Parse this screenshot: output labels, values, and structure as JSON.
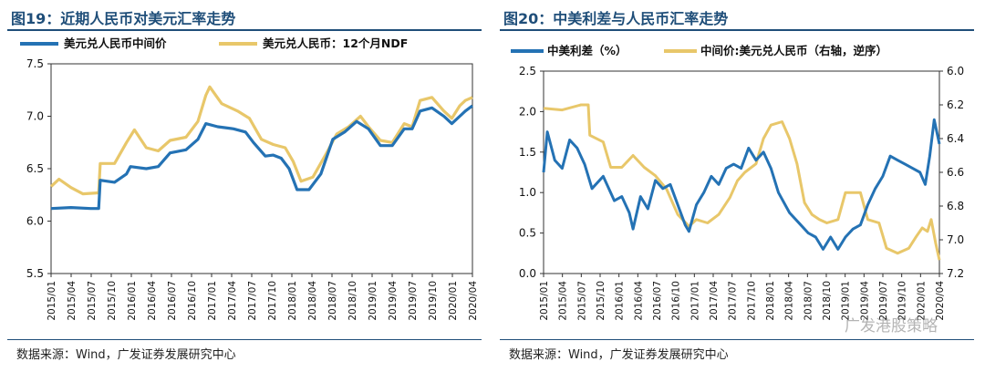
{
  "left": {
    "title": "图19：近期人民币对美元汇率走势",
    "source": "数据来源：Wind，广发证券发展研究中心",
    "chart_data": {
      "type": "line",
      "title": "近期人民币对美元汇率走势",
      "ylim": [
        5.5,
        7.5
      ],
      "yticks": [
        "7.5",
        "7.0",
        "6.5",
        "6.0",
        "5.5"
      ],
      "x_start": 2015.0,
      "x_end": 2020.31,
      "xticks": [
        "2015/01",
        "2015/04",
        "2015/07",
        "2015/10",
        "2016/01",
        "2016/04",
        "2016/07",
        "2016/10",
        "2017/01",
        "2017/04",
        "2017/07",
        "2017/10",
        "2018/01",
        "2018/04",
        "2018/07",
        "2018/10",
        "2019/01",
        "2019/04",
        "2019/07",
        "2019/10",
        "2020/01",
        "2020/04"
      ],
      "series": [
        {
          "name": "美元兑人民币中间价",
          "color": "#2472b4",
          "points": [
            [
              2015.0,
              6.12
            ],
            [
              2015.25,
              6.13
            ],
            [
              2015.5,
              6.12
            ],
            [
              2015.6,
              6.12
            ],
            [
              2015.62,
              6.39
            ],
            [
              2015.8,
              6.37
            ],
            [
              2015.95,
              6.45
            ],
            [
              2016.0,
              6.52
            ],
            [
              2016.2,
              6.5
            ],
            [
              2016.35,
              6.52
            ],
            [
              2016.5,
              6.65
            ],
            [
              2016.7,
              6.68
            ],
            [
              2016.85,
              6.78
            ],
            [
              2016.95,
              6.93
            ],
            [
              2017.1,
              6.9
            ],
            [
              2017.3,
              6.88
            ],
            [
              2017.45,
              6.85
            ],
            [
              2017.55,
              6.75
            ],
            [
              2017.7,
              6.62
            ],
            [
              2017.8,
              6.63
            ],
            [
              2017.9,
              6.6
            ],
            [
              2018.0,
              6.5
            ],
            [
              2018.1,
              6.3
            ],
            [
              2018.25,
              6.3
            ],
            [
              2018.4,
              6.45
            ],
            [
              2018.55,
              6.78
            ],
            [
              2018.7,
              6.85
            ],
            [
              2018.85,
              6.95
            ],
            [
              2019.0,
              6.88
            ],
            [
              2019.15,
              6.72
            ],
            [
              2019.3,
              6.72
            ],
            [
              2019.45,
              6.88
            ],
            [
              2019.55,
              6.88
            ],
            [
              2019.65,
              7.05
            ],
            [
              2019.8,
              7.08
            ],
            [
              2019.95,
              7.0
            ],
            [
              2020.05,
              6.93
            ],
            [
              2020.15,
              7.0
            ],
            [
              2020.22,
              7.05
            ],
            [
              2020.31,
              7.1
            ]
          ]
        },
        {
          "name": "美元兑人民币：12个月NDF",
          "color": "#e8c76a",
          "points": [
            [
              2015.0,
              6.33
            ],
            [
              2015.1,
              6.4
            ],
            [
              2015.25,
              6.32
            ],
            [
              2015.4,
              6.26
            ],
            [
              2015.6,
              6.27
            ],
            [
              2015.62,
              6.55
            ],
            [
              2015.8,
              6.55
            ],
            [
              2015.95,
              6.75
            ],
            [
              2016.05,
              6.87
            ],
            [
              2016.2,
              6.7
            ],
            [
              2016.35,
              6.67
            ],
            [
              2016.5,
              6.77
            ],
            [
              2016.7,
              6.8
            ],
            [
              2016.85,
              6.95
            ],
            [
              2016.95,
              7.2
            ],
            [
              2017.0,
              7.28
            ],
            [
              2017.15,
              7.12
            ],
            [
              2017.35,
              7.05
            ],
            [
              2017.5,
              6.98
            ],
            [
              2017.65,
              6.78
            ],
            [
              2017.8,
              6.73
            ],
            [
              2017.95,
              6.7
            ],
            [
              2018.05,
              6.57
            ],
            [
              2018.15,
              6.38
            ],
            [
              2018.3,
              6.42
            ],
            [
              2018.45,
              6.62
            ],
            [
              2018.6,
              6.83
            ],
            [
              2018.75,
              6.9
            ],
            [
              2018.9,
              7.0
            ],
            [
              2019.0,
              6.9
            ],
            [
              2019.15,
              6.77
            ],
            [
              2019.3,
              6.75
            ],
            [
              2019.45,
              6.93
            ],
            [
              2019.55,
              6.9
            ],
            [
              2019.65,
              7.15
            ],
            [
              2019.8,
              7.18
            ],
            [
              2019.95,
              7.05
            ],
            [
              2020.05,
              6.98
            ],
            [
              2020.15,
              7.1
            ],
            [
              2020.22,
              7.15
            ],
            [
              2020.31,
              7.18
            ]
          ]
        }
      ]
    }
  },
  "right": {
    "title": "图20：中美利差与人民币汇率走势",
    "source": "数据来源：Wind，广发证券发展研究中心",
    "watermark": "广发港股策略",
    "chart_data": {
      "type": "line",
      "title": "中美利差与人民币汇率走势",
      "ylim_left": [
        0,
        2.5
      ],
      "yticks_left": [
        "2.5",
        "2.0",
        "1.5",
        "1.0",
        "0.5",
        "0.0"
      ],
      "ylim_right_reversed": [
        6.0,
        7.2
      ],
      "yticks_right": [
        "6.0",
        "6.2",
        "6.4",
        "6.6",
        "6.8",
        "7.0",
        "7.2"
      ],
      "x_start": 2015.0,
      "x_end": 2020.31,
      "xticks": [
        "2015/01",
        "2015/04",
        "2015/07",
        "2015/10",
        "2016/01",
        "2016/04",
        "2016/07",
        "2016/10",
        "2017/01",
        "2017/04",
        "2017/07",
        "2017/10",
        "2018/01",
        "2018/04",
        "2018/07",
        "2018/10",
        "2019/01",
        "2019/04",
        "2019/07",
        "2019/10",
        "2020/01",
        "2020/04"
      ],
      "series": [
        {
          "name": "中美利差（%）",
          "axis": "left",
          "color": "#2472b4",
          "points": [
            [
              2015.0,
              1.25
            ],
            [
              2015.05,
              1.75
            ],
            [
              2015.15,
              1.4
            ],
            [
              2015.25,
              1.3
            ],
            [
              2015.35,
              1.65
            ],
            [
              2015.45,
              1.55
            ],
            [
              2015.55,
              1.35
            ],
            [
              2015.65,
              1.05
            ],
            [
              2015.8,
              1.2
            ],
            [
              2015.95,
              0.9
            ],
            [
              2016.05,
              0.95
            ],
            [
              2016.15,
              0.75
            ],
            [
              2016.2,
              0.55
            ],
            [
              2016.3,
              0.95
            ],
            [
              2016.4,
              0.8
            ],
            [
              2016.5,
              1.15
            ],
            [
              2016.6,
              1.05
            ],
            [
              2016.7,
              1.1
            ],
            [
              2016.8,
              0.85
            ],
            [
              2016.9,
              0.6
            ],
            [
              2016.95,
              0.52
            ],
            [
              2017.05,
              0.85
            ],
            [
              2017.15,
              1.0
            ],
            [
              2017.25,
              1.2
            ],
            [
              2017.35,
              1.1
            ],
            [
              2017.45,
              1.3
            ],
            [
              2017.55,
              1.35
            ],
            [
              2017.65,
              1.3
            ],
            [
              2017.75,
              1.55
            ],
            [
              2017.85,
              1.4
            ],
            [
              2017.95,
              1.5
            ],
            [
              2018.05,
              1.3
            ],
            [
              2018.15,
              1.0
            ],
            [
              2018.3,
              0.75
            ],
            [
              2018.45,
              0.6
            ],
            [
              2018.55,
              0.5
            ],
            [
              2018.65,
              0.45
            ],
            [
              2018.75,
              0.3
            ],
            [
              2018.85,
              0.45
            ],
            [
              2018.95,
              0.3
            ],
            [
              2019.05,
              0.45
            ],
            [
              2019.15,
              0.55
            ],
            [
              2019.25,
              0.6
            ],
            [
              2019.35,
              0.85
            ],
            [
              2019.45,
              1.05
            ],
            [
              2019.55,
              1.2
            ],
            [
              2019.65,
              1.45
            ],
            [
              2019.75,
              1.4
            ],
            [
              2019.85,
              1.35
            ],
            [
              2019.95,
              1.3
            ],
            [
              2020.05,
              1.25
            ],
            [
              2020.12,
              1.1
            ],
            [
              2020.18,
              1.45
            ],
            [
              2020.24,
              1.9
            ],
            [
              2020.31,
              1.6
            ]
          ]
        },
        {
          "name": "中间价:美元兑人民币（右轴，逆序）",
          "axis": "right",
          "color": "#e8c76a",
          "points": [
            [
              2015.0,
              6.22
            ],
            [
              2015.25,
              6.23
            ],
            [
              2015.5,
              6.2
            ],
            [
              2015.6,
              6.2
            ],
            [
              2015.62,
              6.38
            ],
            [
              2015.8,
              6.42
            ],
            [
              2015.9,
              6.57
            ],
            [
              2016.05,
              6.57
            ],
            [
              2016.2,
              6.5
            ],
            [
              2016.35,
              6.57
            ],
            [
              2016.5,
              6.62
            ],
            [
              2016.65,
              6.7
            ],
            [
              2016.8,
              6.85
            ],
            [
              2016.95,
              6.92
            ],
            [
              2017.05,
              6.88
            ],
            [
              2017.2,
              6.9
            ],
            [
              2017.35,
              6.85
            ],
            [
              2017.5,
              6.75
            ],
            [
              2017.6,
              6.65
            ],
            [
              2017.7,
              6.6
            ],
            [
              2017.85,
              6.55
            ],
            [
              2017.95,
              6.4
            ],
            [
              2018.05,
              6.32
            ],
            [
              2018.2,
              6.3
            ],
            [
              2018.3,
              6.4
            ],
            [
              2018.4,
              6.55
            ],
            [
              2018.5,
              6.78
            ],
            [
              2018.6,
              6.85
            ],
            [
              2018.7,
              6.88
            ],
            [
              2018.8,
              6.9
            ],
            [
              2018.95,
              6.88
            ],
            [
              2019.05,
              6.72
            ],
            [
              2019.15,
              6.72
            ],
            [
              2019.25,
              6.72
            ],
            [
              2019.35,
              6.88
            ],
            [
              2019.5,
              6.9
            ],
            [
              2019.6,
              7.05
            ],
            [
              2019.75,
              7.08
            ],
            [
              2019.9,
              7.05
            ],
            [
              2020.0,
              6.98
            ],
            [
              2020.08,
              6.93
            ],
            [
              2020.15,
              6.95
            ],
            [
              2020.2,
              6.88
            ],
            [
              2020.26,
              7.02
            ],
            [
              2020.31,
              7.12
            ]
          ]
        }
      ]
    }
  }
}
